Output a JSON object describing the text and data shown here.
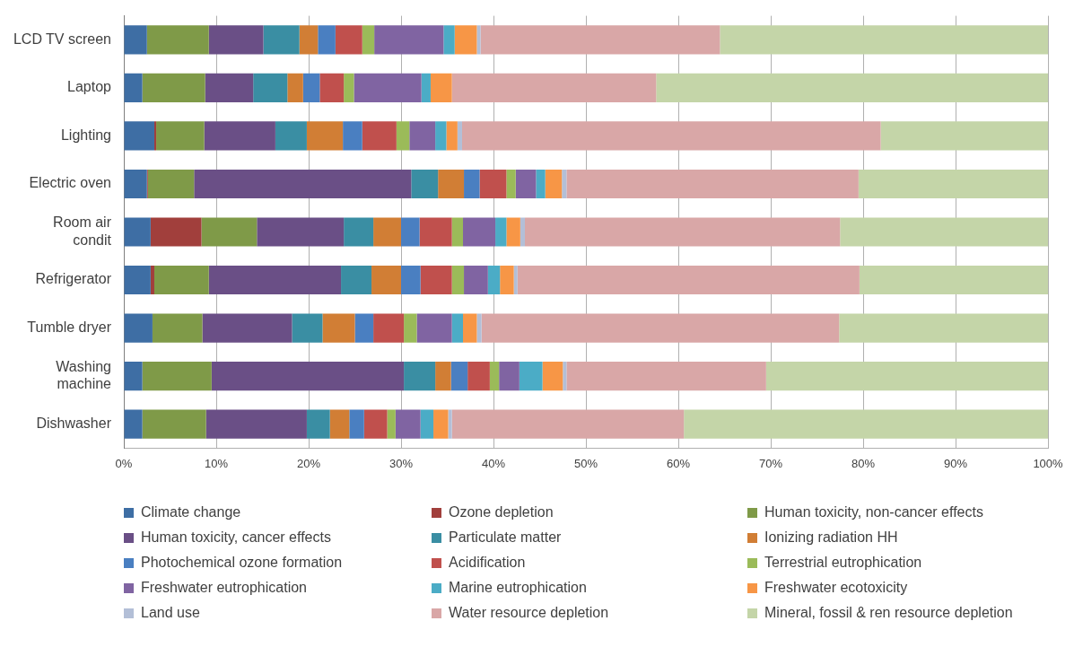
{
  "chart_data": {
    "type": "bar",
    "orientation": "horizontal",
    "stacked": true,
    "categories": [
      "LCD TV screen",
      "Laptop",
      "Lighting",
      "Electric oven",
      "Room air condit",
      "Refrigerator",
      "Tumble dryer",
      "Washing machine",
      "Dishwasher"
    ],
    "xlim": [
      0,
      100
    ],
    "xticks": [
      {
        "value": 0,
        "label": "0%"
      },
      {
        "value": 10,
        "label": "10%"
      },
      {
        "value": 20,
        "label": "20%"
      },
      {
        "value": 30,
        "label": "30%"
      },
      {
        "value": 40,
        "label": "40%"
      },
      {
        "value": 50,
        "label": "50%"
      },
      {
        "value": 60,
        "label": "60%"
      },
      {
        "value": 70,
        "label": "70%"
      },
      {
        "value": 80,
        "label": "80%"
      },
      {
        "value": 90,
        "label": "90%"
      },
      {
        "value": 100,
        "label": "100%"
      }
    ],
    "grid": "x",
    "legend": "bottom",
    "series": [
      {
        "name": "Climate change",
        "color": "#3e6ea4",
        "values": [
          2.5,
          2.0,
          3.3,
          2.5,
          2.9,
          2.9,
          3.1,
          2.0,
          2.0
        ]
      },
      {
        "name": "Ozone depletion",
        "color": "#a13f3c",
        "values": [
          0,
          0,
          0.2,
          0.1,
          5.5,
          0.4,
          0,
          0,
          0
        ]
      },
      {
        "name": "Human toxicity, non-cancer effects",
        "color": "#7f9a48",
        "values": [
          6.7,
          6.8,
          5.2,
          5.0,
          6.0,
          5.9,
          5.4,
          7.5,
          6.9
        ]
      },
      {
        "name": "Human toxicity, cancer effects",
        "color": "#6a4f86",
        "values": [
          5.9,
          5.2,
          7.7,
          23.5,
          9.4,
          14.3,
          9.7,
          20.8,
          10.9
        ]
      },
      {
        "name": "Particulate matter",
        "color": "#3a8ea3",
        "values": [
          3.9,
          3.7,
          3.4,
          2.9,
          3.2,
          3.3,
          3.3,
          3.4,
          2.5
        ]
      },
      {
        "name": "Ionizing radiation HH",
        "color": "#d17e35",
        "values": [
          2.0,
          1.7,
          3.9,
          2.8,
          3.0,
          3.2,
          3.5,
          1.7,
          2.1
        ]
      },
      {
        "name": "Photochemical ozone formation",
        "color": "#4a7fc1",
        "values": [
          1.9,
          1.8,
          2.1,
          1.7,
          2.0,
          2.1,
          2.0,
          1.8,
          1.6
        ]
      },
      {
        "name": "Acidification",
        "color": "#c0504d",
        "values": [
          2.9,
          2.6,
          3.7,
          2.9,
          3.5,
          3.4,
          3.3,
          2.4,
          2.5
        ]
      },
      {
        "name": "Terrestrial eutrophication",
        "color": "#9bbb59",
        "values": [
          1.3,
          1.1,
          1.4,
          1.0,
          1.2,
          1.3,
          1.4,
          1.0,
          0.9
        ]
      },
      {
        "name": "Freshwater eutrophication",
        "color": "#8064a2",
        "values": [
          7.5,
          7.3,
          2.8,
          2.2,
          3.5,
          2.6,
          3.8,
          2.2,
          2.7
        ]
      },
      {
        "name": "Marine eutrophication",
        "color": "#4bacc6",
        "values": [
          1.2,
          1.0,
          1.2,
          1.0,
          1.2,
          1.3,
          1.2,
          2.5,
          1.4
        ]
      },
      {
        "name": "Freshwater ecotoxicity",
        "color": "#f79646",
        "values": [
          2.4,
          2.3,
          1.2,
          1.8,
          1.5,
          1.5,
          1.5,
          2.2,
          1.6
        ]
      },
      {
        "name": "Land use",
        "color": "#b3bfd7",
        "values": [
          0.4,
          null,
          0.5,
          0.5,
          0.5,
          0.4,
          0.5,
          0.4,
          0.4
        ]
      },
      {
        "name": "Water resource depletion",
        "color": "#d9a7a7",
        "values": [
          25.9,
          22.1,
          45.3,
          31.6,
          34.1,
          37.0,
          38.7,
          21.6,
          25.1
        ]
      },
      {
        "name": "Mineral, fossil & ren resource depletion",
        "color": "#c4d5a8",
        "values": [
          35.5,
          42.4,
          18.1,
          20.5,
          22.5,
          20.4,
          22.6,
          30.5,
          39.4
        ]
      }
    ]
  }
}
